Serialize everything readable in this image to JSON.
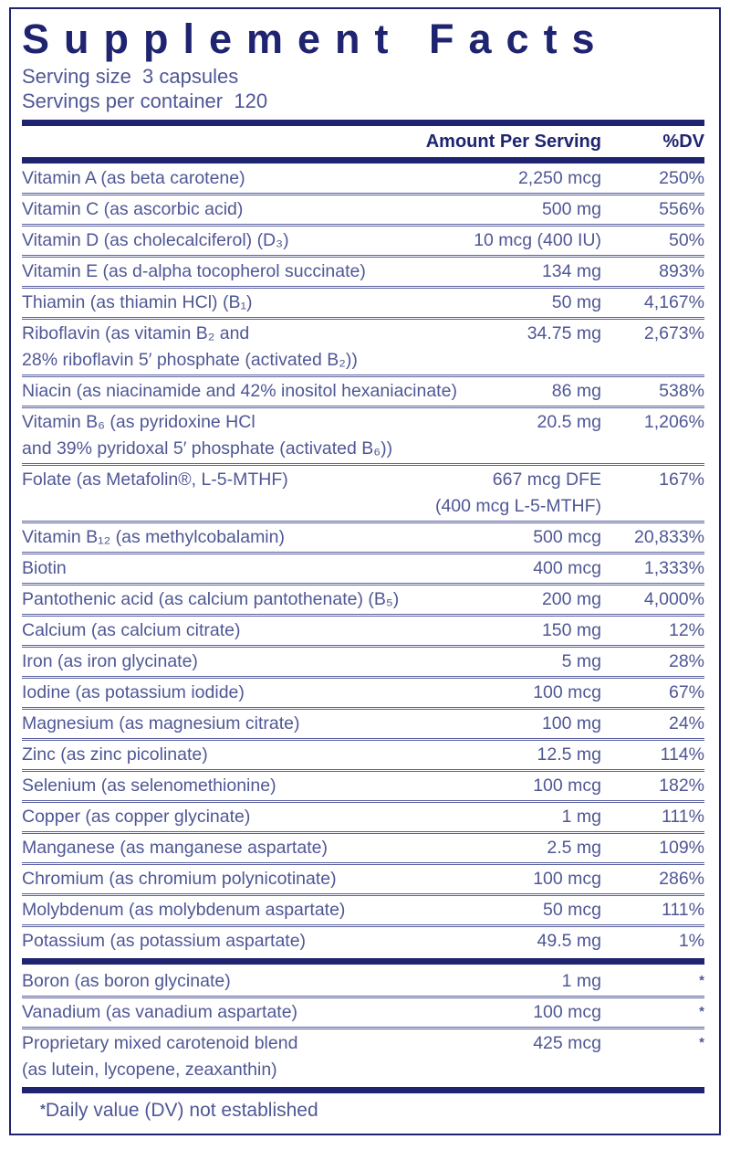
{
  "label": {
    "title": "Supplement Facts",
    "serving_size": "Serving size  3 capsules",
    "servings_per_container": "Servings per container  120",
    "columns": {
      "amount": "Amount Per Serving",
      "dv": "%DV"
    },
    "footnote": {
      "star": "*",
      "text": "Daily value (DV) not established"
    },
    "colors": {
      "navy": "#1f2470",
      "slate_blue_text": "#4f5795"
    }
  },
  "rows": [
    {
      "name": "Vitamin A (as beta carotene)",
      "amount": "2,250 mcg",
      "dv": "250%"
    },
    {
      "name": "Vitamin C (as ascorbic acid)",
      "amount": "500 mg",
      "dv": "556%"
    },
    {
      "name": "Vitamin D (as cholecalciferol) (D₃)",
      "amount": "10 mcg (400 IU)",
      "dv": "50%"
    },
    {
      "name": "Vitamin E (as d-alpha tocopherol succinate)",
      "amount": "134 mg",
      "dv": "893%"
    },
    {
      "name": "Thiamin (as thiamin HCl) (B₁)",
      "amount": "50 mg",
      "dv": "4,167%"
    },
    {
      "name": "Riboflavin (as vitamin B₂ and",
      "name2": "28% riboflavin 5′ phosphate (activated B₂))",
      "amount": "34.75 mg",
      "dv": "2,673%"
    },
    {
      "name": "Niacin (as niacinamide and 42% inositol hexaniacinate)",
      "amount": "86 mg",
      "dv": "538%"
    },
    {
      "name": "Vitamin B₆ (as pyridoxine HCl",
      "name2": "and 39% pyridoxal 5′ phosphate (activated B₆))",
      "amount": "20.5 mg",
      "dv": "1,206%"
    },
    {
      "name": "Folate (as Metafolin®, L-5-MTHF)",
      "amount": "667 mcg DFE",
      "amount2": "(400 mcg L-5-MTHF)",
      "dv": "167%"
    },
    {
      "name": "Vitamin B₁₂ (as methylcobalamin)",
      "amount": "500 mcg",
      "dv": "20,833%"
    },
    {
      "name": "Biotin",
      "amount": "400 mcg",
      "dv": "1,333%"
    },
    {
      "name": "Pantothenic acid (as calcium pantothenate) (B₅)",
      "amount": "200 mg",
      "dv": "4,000%"
    },
    {
      "name": "Calcium (as calcium citrate)",
      "amount": "150 mg",
      "dv": "12%"
    },
    {
      "name": "Iron (as iron glycinate)",
      "amount": "5 mg",
      "dv": "28%"
    },
    {
      "name": "Iodine (as potassium iodide)",
      "amount": "100 mcg",
      "dv": "67%"
    },
    {
      "name": "Magnesium (as magnesium citrate)",
      "amount": "100 mg",
      "dv": "24%"
    },
    {
      "name": "Zinc (as zinc picolinate)",
      "amount": "12.5 mg",
      "dv": "114%"
    },
    {
      "name": "Selenium (as selenomethionine)",
      "amount": "100 mcg",
      "dv": "182%"
    },
    {
      "name": "Copper (as copper glycinate)",
      "amount": "1 mg",
      "dv": "111%"
    },
    {
      "name": "Manganese (as manganese aspartate)",
      "amount": "2.5 mg",
      "dv": "109%"
    },
    {
      "name": "Chromium (as chromium polynicotinate)",
      "amount": "100 mcg",
      "dv": "286%"
    },
    {
      "name": "Molybdenum (as molybdenum aspartate)",
      "amount": "50 mcg",
      "dv": "111%"
    },
    {
      "name": "Potassium (as potassium aspartate)",
      "amount": "49.5 mg",
      "dv": "1%"
    },
    {
      "name": "Boron (as boron glycinate)",
      "amount": "1 mg",
      "dv": "*"
    },
    {
      "name": "Vanadium (as vanadium aspartate)",
      "amount": "100 mcg",
      "dv": "*"
    },
    {
      "name": "Proprietary mixed carotenoid blend",
      "name2": "(as lutein, lycopene, zeaxanthin)",
      "amount": "425 mcg",
      "dv": "*"
    }
  ]
}
